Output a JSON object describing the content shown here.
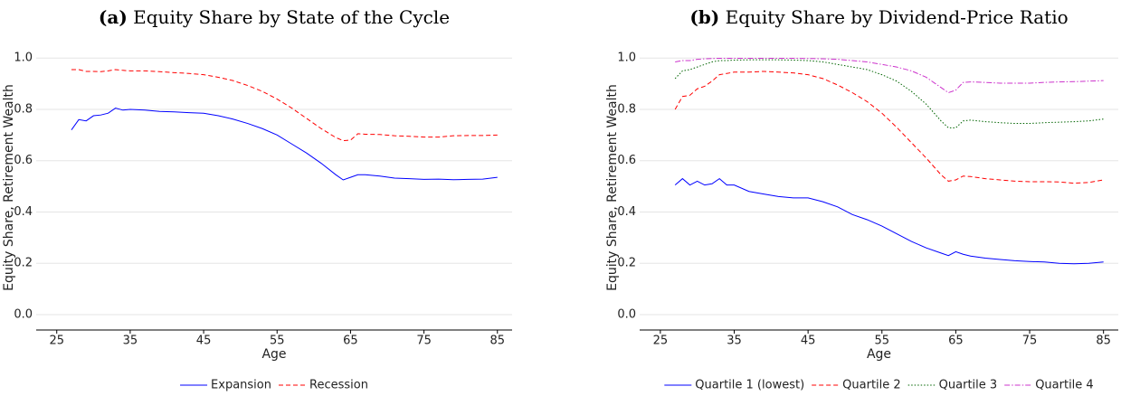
{
  "chart_data": [
    {
      "type": "line",
      "panel": "(a)",
      "title": "Equity Share by State of the Cycle",
      "x_label": "Age",
      "y_label": "Equity Share, Retirement Wealth",
      "x": [
        27,
        28,
        29,
        30,
        31,
        32,
        33,
        34,
        35,
        37,
        39,
        41,
        43,
        45,
        47,
        49,
        51,
        53,
        55,
        57,
        59,
        61,
        63,
        64,
        65,
        66,
        67,
        69,
        71,
        73,
        75,
        77,
        79,
        81,
        83,
        85
      ],
      "series": [
        {
          "name": "Expansion",
          "color": "#0000ff",
          "style": "solid",
          "values": [
            0.72,
            0.76,
            0.755,
            0.775,
            0.778,
            0.785,
            0.805,
            0.797,
            0.8,
            0.797,
            0.792,
            0.79,
            0.787,
            0.785,
            0.775,
            0.762,
            0.745,
            0.725,
            0.7,
            0.665,
            0.63,
            0.59,
            0.545,
            0.525,
            0.535,
            0.545,
            0.545,
            0.54,
            0.532,
            0.53,
            0.527,
            0.528,
            0.526,
            0.527,
            0.528,
            0.535
          ]
        },
        {
          "name": "Recession",
          "color": "#ff0000",
          "style": "dashed",
          "values": [
            0.955,
            0.955,
            0.948,
            0.948,
            0.947,
            0.95,
            0.955,
            0.952,
            0.95,
            0.95,
            0.947,
            0.943,
            0.94,
            0.935,
            0.925,
            0.912,
            0.893,
            0.87,
            0.84,
            0.805,
            0.765,
            0.725,
            0.69,
            0.678,
            0.68,
            0.705,
            0.703,
            0.702,
            0.697,
            0.695,
            0.692,
            0.692,
            0.697,
            0.698,
            0.698,
            0.7
          ]
        }
      ],
      "xlim": [
        22.2,
        87
      ],
      "ylim": [
        -0.06,
        1.05
      ],
      "xticks": [
        25,
        35,
        45,
        55,
        65,
        75,
        85
      ],
      "yticks": [
        {
          "value": 0,
          "label": "0.0"
        },
        0.2,
        0.4,
        0.6,
        0.8,
        {
          "value": 1,
          "label": "1.0"
        }
      ],
      "grid": true
    },
    {
      "type": "line",
      "panel": "(b)",
      "title": "Equity Share by Dividend-Price Ratio",
      "x_label": "Age",
      "y_label": "Equity Share, Retirement Wealth",
      "x": [
        27,
        28,
        29,
        30,
        31,
        32,
        33,
        34,
        35,
        37,
        39,
        41,
        43,
        45,
        47,
        49,
        51,
        53,
        55,
        57,
        59,
        61,
        63,
        64,
        65,
        66,
        67,
        69,
        71,
        73,
        75,
        77,
        79,
        81,
        83,
        85
      ],
      "series": [
        {
          "name": "Quartile 1 (lowest)",
          "color": "#0000ff",
          "style": "solid",
          "values": [
            0.505,
            0.53,
            0.505,
            0.52,
            0.505,
            0.51,
            0.53,
            0.505,
            0.505,
            0.48,
            0.47,
            0.46,
            0.455,
            0.455,
            0.44,
            0.42,
            0.39,
            0.37,
            0.345,
            0.315,
            0.285,
            0.26,
            0.24,
            0.23,
            0.245,
            0.235,
            0.228,
            0.22,
            0.215,
            0.21,
            0.207,
            0.205,
            0.2,
            0.198,
            0.2,
            0.205
          ]
        },
        {
          "name": "Quartile 2",
          "color": "#ff0000",
          "style": "dashed",
          "values": [
            0.8,
            0.85,
            0.855,
            0.88,
            0.89,
            0.91,
            0.935,
            0.94,
            0.945,
            0.945,
            0.948,
            0.945,
            0.942,
            0.935,
            0.92,
            0.895,
            0.865,
            0.83,
            0.785,
            0.73,
            0.67,
            0.61,
            0.545,
            0.52,
            0.525,
            0.54,
            0.538,
            0.53,
            0.525,
            0.52,
            0.518,
            0.518,
            0.517,
            0.512,
            0.515,
            0.525
          ]
        },
        {
          "name": "Quartile 3",
          "color": "#006400",
          "style": "dotted",
          "values": [
            0.92,
            0.95,
            0.955,
            0.965,
            0.975,
            0.985,
            0.99,
            0.99,
            0.992,
            0.993,
            0.993,
            0.993,
            0.992,
            0.99,
            0.985,
            0.975,
            0.965,
            0.955,
            0.935,
            0.91,
            0.87,
            0.82,
            0.755,
            0.728,
            0.728,
            0.755,
            0.758,
            0.752,
            0.748,
            0.745,
            0.745,
            0.748,
            0.75,
            0.752,
            0.755,
            0.762
          ]
        },
        {
          "name": "Quartile 4",
          "color": "#cc33cc",
          "style": "dashdot",
          "values": [
            0.985,
            0.99,
            0.99,
            0.995,
            0.997,
            0.998,
            0.999,
            0.999,
            0.999,
            0.999,
            0.999,
            0.999,
            0.999,
            0.998,
            0.997,
            0.995,
            0.99,
            0.985,
            0.975,
            0.965,
            0.95,
            0.925,
            0.885,
            0.865,
            0.875,
            0.905,
            0.907,
            0.905,
            0.902,
            0.902,
            0.902,
            0.905,
            0.907,
            0.908,
            0.91,
            0.912
          ]
        }
      ],
      "xlim": [
        22.2,
        87
      ],
      "ylim": [
        -0.06,
        1.05
      ],
      "xticks": [
        25,
        35,
        45,
        55,
        65,
        75,
        85
      ],
      "yticks": [
        {
          "value": 0,
          "label": "0.0"
        },
        0.2,
        0.4,
        0.6,
        0.8,
        {
          "value": 1,
          "label": "1.0"
        }
      ],
      "grid": true
    }
  ]
}
